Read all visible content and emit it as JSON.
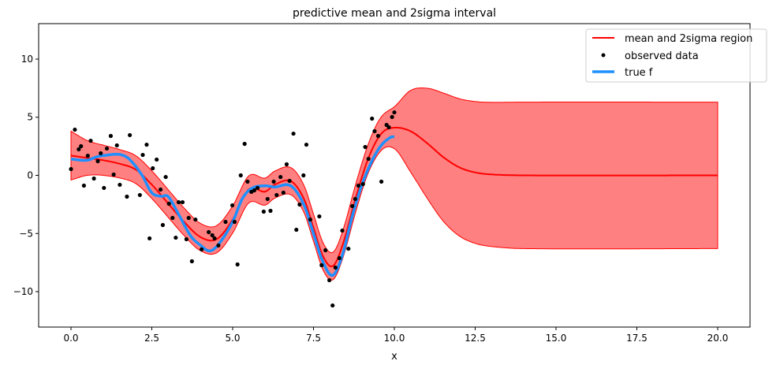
{
  "chart_data": {
    "type": "line",
    "title": "predictive mean and 2sigma interval",
    "xlabel": "x",
    "ylabel": "",
    "xlim": [
      -1.0,
      21.0
    ],
    "ylim": [
      -13.05,
      13.05
    ],
    "xticks": [
      0,
      2.5,
      5,
      7.5,
      10,
      12.5,
      15,
      17.5,
      20
    ],
    "xtick_labels": [
      "0.0",
      "2.5",
      "5.0",
      "7.5",
      "10.0",
      "12.5",
      "15.0",
      "17.5",
      "20.0"
    ],
    "yticks": [
      -10,
      -5,
      0,
      5,
      10
    ],
    "ytick_labels": [
      "−10",
      "−5",
      "0",
      "5",
      "10"
    ],
    "grid": false,
    "legend_placement": "top-right",
    "legend": [
      "mean and 2sigma region",
      "observed data",
      "true f"
    ],
    "colors": {
      "mean": "#ff0000",
      "band": "#ff8080",
      "observed": "#000000",
      "true": "#1e90ff"
    },
    "mean": {
      "x": [
        0,
        0.5,
        1,
        1.5,
        2,
        2.5,
        3,
        3.5,
        4,
        4.5,
        5,
        5.5,
        6,
        6.3,
        6.8,
        7.2,
        7.5,
        7.8,
        8.1,
        8.4,
        8.8,
        9.2,
        9.6,
        10,
        10.5,
        11,
        11.5,
        12,
        12.5,
        13,
        14,
        20
      ],
      "y": [
        1.7,
        1.5,
        1.3,
        1.0,
        0.5,
        -0.8,
        -2.4,
        -4.0,
        -5.3,
        -5.5,
        -3.8,
        -1.2,
        -1.4,
        -0.8,
        -0.5,
        -2.0,
        -4.5,
        -7.0,
        -7.8,
        -6.0,
        -2.0,
        1.5,
        3.6,
        4.1,
        3.8,
        2.8,
        1.6,
        0.7,
        0.25,
        0.08,
        0,
        0
      ]
    },
    "two_sigma": {
      "x": [
        0,
        0.5,
        1,
        2,
        9,
        9.5,
        10,
        10.5,
        11,
        11.5,
        12,
        12.5,
        13,
        14,
        20
      ],
      "y": [
        2.1,
        1.5,
        1.3,
        1.2,
        1.2,
        1.4,
        1.8,
        3.5,
        4.7,
        5.5,
        5.9,
        6.1,
        6.2,
        6.3,
        6.3
      ]
    },
    "true_f": {
      "x": [
        0,
        0.5,
        0.8,
        1,
        1.5,
        1.8,
        2.2,
        2.5,
        2.8,
        3,
        3.3,
        3.7,
        4,
        4.3,
        4.6,
        5,
        5.3,
        5.6,
        6,
        6.3,
        6.8,
        7.2,
        7.5,
        7.8,
        8.1,
        8.4,
        8.7,
        9,
        9.3,
        9.6,
        9.9,
        10
      ],
      "y": [
        1.4,
        1.3,
        1.6,
        1.7,
        1.8,
        1.4,
        0,
        -1.5,
        -1.8,
        -1.8,
        -3.2,
        -5.2,
        -6.0,
        -6.5,
        -5.8,
        -4.0,
        -2.0,
        -1.1,
        -0.9,
        -1.0,
        -0.9,
        -2.5,
        -5.0,
        -7.5,
        -8.6,
        -6.8,
        -3.5,
        -0.8,
        1.2,
        2.6,
        3.3,
        3.3
      ]
    },
    "observed": [
      [
        0.12,
        3.93
      ],
      [
        0.61,
        2.98
      ],
      [
        0.31,
        2.51
      ],
      [
        0.24,
        2.24
      ],
      [
        1.23,
        3.39
      ],
      [
        1.82,
        3.46
      ],
      [
        1.42,
        2.58
      ],
      [
        1.11,
        2.31
      ],
      [
        0.52,
        1.69
      ],
      [
        0.92,
        1.9
      ],
      [
        0.83,
        1.22
      ],
      [
        0.0,
        0.54
      ],
      [
        0.71,
        -0.27
      ],
      [
        0.4,
        -0.88
      ],
      [
        1.02,
        -1.08
      ],
      [
        1.32,
        0.07
      ],
      [
        1.51,
        -0.81
      ],
      [
        1.73,
        -1.83
      ],
      [
        2.13,
        -1.69
      ],
      [
        2.34,
        2.64
      ],
      [
        2.22,
        1.76
      ],
      [
        2.65,
        1.36
      ],
      [
        2.53,
        0.61
      ],
      [
        2.93,
        -0.14
      ],
      [
        2.77,
        -1.22
      ],
      [
        3.03,
        -2.44
      ],
      [
        3.33,
        -2.31
      ],
      [
        3.45,
        -2.31
      ],
      [
        3.14,
        -3.66
      ],
      [
        2.84,
        -4.27
      ],
      [
        2.43,
        -5.42
      ],
      [
        3.24,
        -5.36
      ],
      [
        3.64,
        -3.66
      ],
      [
        3.85,
        -3.8
      ],
      [
        3.57,
        -5.49
      ],
      [
        3.74,
        -7.39
      ],
      [
        4.26,
        -4.88
      ],
      [
        4.37,
        -5.15
      ],
      [
        4.44,
        -5.42
      ],
      [
        4.04,
        -6.37
      ],
      [
        4.56,
        -6.03
      ],
      [
        4.78,
        -4.0
      ],
      [
        5.37,
        2.71
      ],
      [
        6.88,
        3.59
      ],
      [
        7.28,
        2.64
      ],
      [
        5.25,
        0.0
      ],
      [
        5.46,
        -0.54
      ],
      [
        5.58,
        -1.42
      ],
      [
        5.67,
        -1.29
      ],
      [
        5.77,
        -1.08
      ],
      [
        5.96,
        -3.12
      ],
      [
        6.08,
        -2.03
      ],
      [
        6.17,
        -3.05
      ],
      [
        6.27,
        -0.54
      ],
      [
        6.36,
        -1.69
      ],
      [
        6.48,
        -0.14
      ],
      [
        6.57,
        -1.49
      ],
      [
        6.67,
        0.95
      ],
      [
        6.76,
        -0.47
      ],
      [
        7.19,
        0.0
      ],
      [
        7.07,
        -2.51
      ],
      [
        6.97,
        -4.68
      ],
      [
        7.4,
        -3.8
      ],
      [
        7.68,
        -3.53
      ],
      [
        4.99,
        -2.58
      ],
      [
        5.06,
        -4.0
      ],
      [
        5.15,
        -7.66
      ],
      [
        7.87,
        -6.44
      ],
      [
        7.75,
        -7.73
      ],
      [
        7.99,
        -9.02
      ],
      [
        8.18,
        -7.93
      ],
      [
        8.3,
        -7.12
      ],
      [
        8.09,
        -11.19
      ],
      [
        8.39,
        -4.75
      ],
      [
        8.58,
        -6.31
      ],
      [
        8.7,
        -2.64
      ],
      [
        8.79,
        -2.03
      ],
      [
        8.89,
        -0.88
      ],
      [
        9.03,
        -0.75
      ],
      [
        9.2,
        1.42
      ],
      [
        9.1,
        2.44
      ],
      [
        9.6,
        -0.54
      ],
      [
        9.39,
        3.8
      ],
      [
        9.5,
        3.39
      ],
      [
        9.83,
        4.14
      ],
      [
        9.31,
        4.88
      ],
      [
        9.76,
        4.34
      ],
      [
        9.93,
        5.02
      ],
      [
        10.0,
        5.42
      ]
    ]
  }
}
